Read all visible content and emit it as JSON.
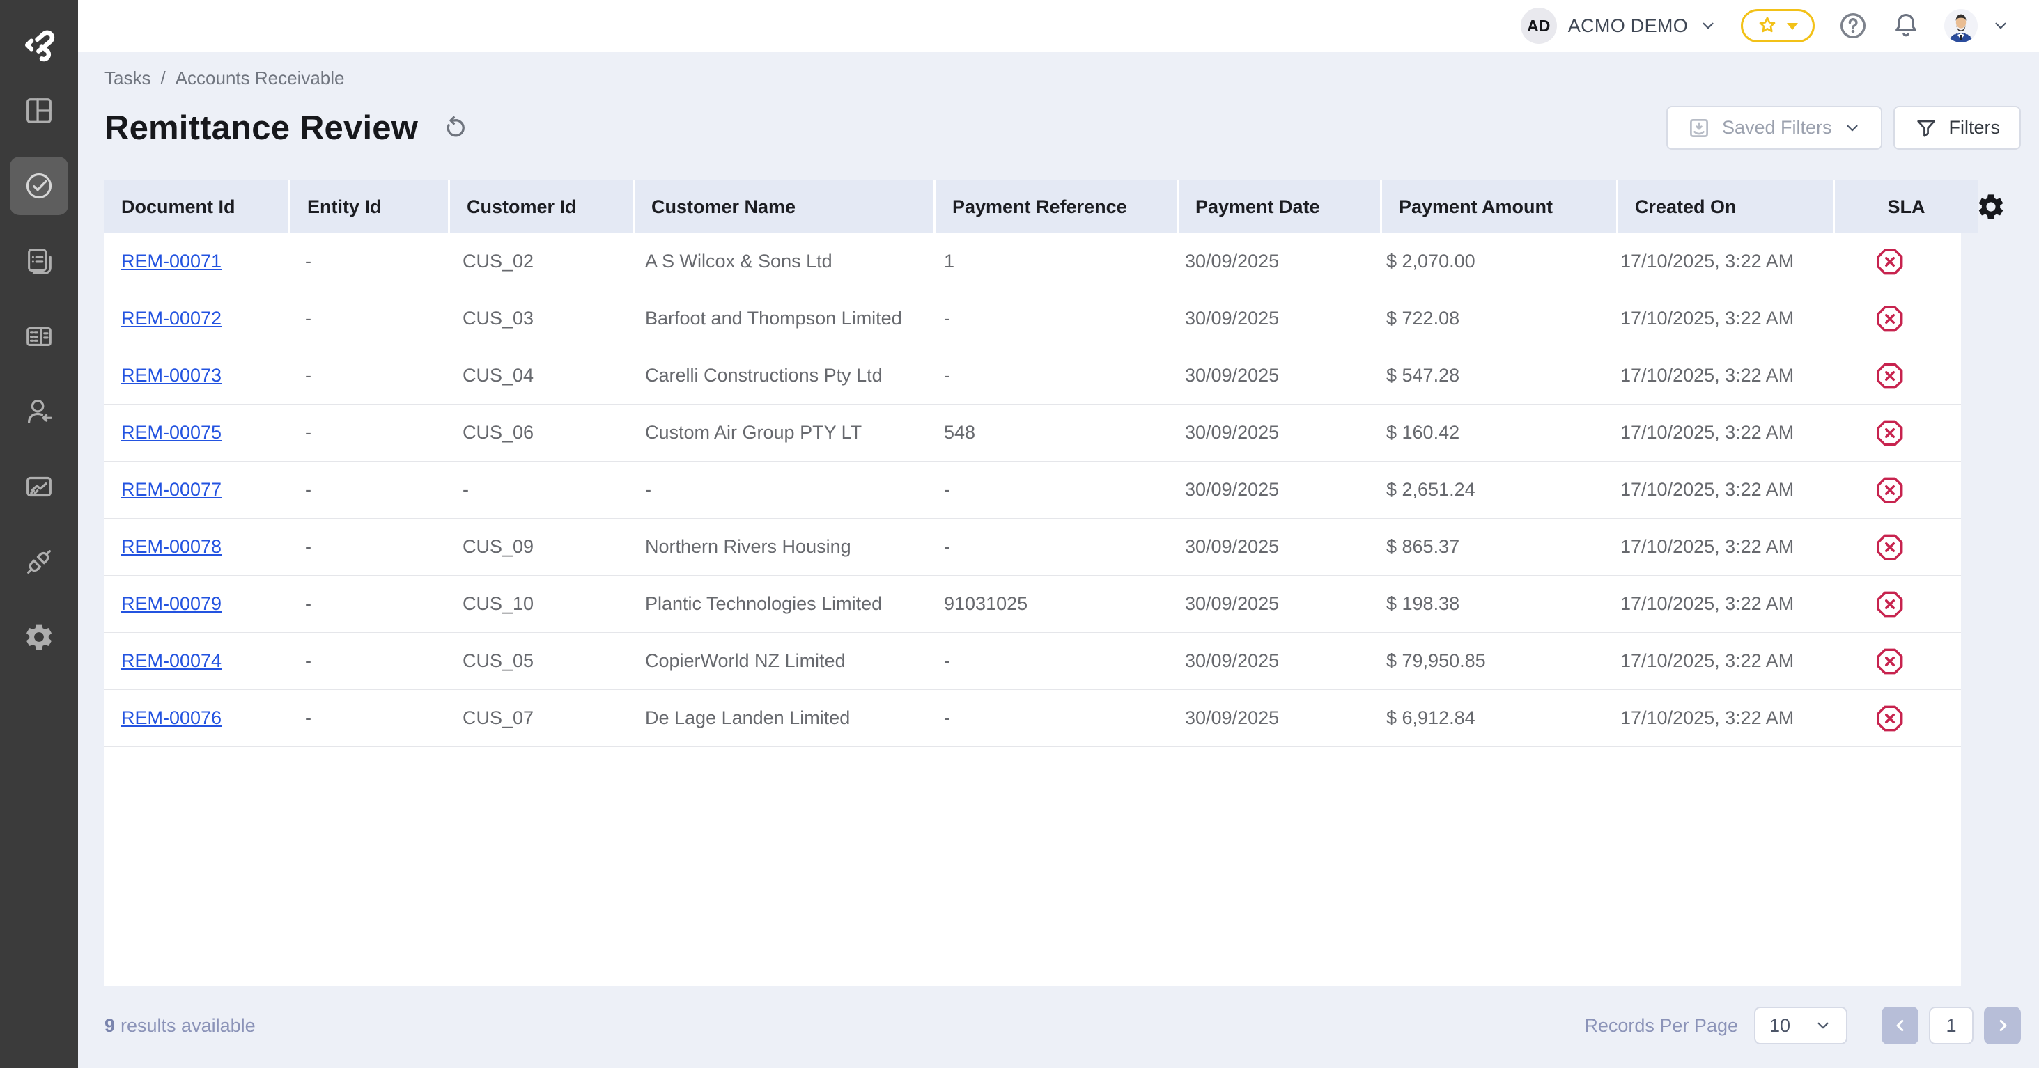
{
  "topbar": {
    "org_badge": "AD",
    "org_name": "ACMO DEMO"
  },
  "breadcrumb": {
    "items": [
      "Tasks",
      "Accounts Receivable"
    ],
    "separator": "/"
  },
  "page": {
    "title": "Remittance Review"
  },
  "toolbar": {
    "saved_filters_label": "Saved Filters",
    "filters_label": "Filters"
  },
  "table": {
    "columns": [
      "Document Id",
      "Entity Id",
      "Customer Id",
      "Customer Name",
      "Payment Reference",
      "Payment Date",
      "Payment Amount",
      "Created On",
      "SLA"
    ],
    "rows": [
      {
        "document_id": "REM-00071",
        "entity_id": "-",
        "customer_id": "CUS_02",
        "customer_name": "A S Wilcox & Sons Ltd",
        "payment_reference": "1",
        "payment_date": "30/09/2025",
        "payment_amount": "$ 2,070.00",
        "created_on": "17/10/2025, 3:22 AM",
        "sla": "breached"
      },
      {
        "document_id": "REM-00072",
        "entity_id": "-",
        "customer_id": "CUS_03",
        "customer_name": "Barfoot and Thompson Limited",
        "payment_reference": "-",
        "payment_date": "30/09/2025",
        "payment_amount": "$ 722.08",
        "created_on": "17/10/2025, 3:22 AM",
        "sla": "breached"
      },
      {
        "document_id": "REM-00073",
        "entity_id": "-",
        "customer_id": "CUS_04",
        "customer_name": "Carelli Constructions Pty Ltd",
        "payment_reference": "-",
        "payment_date": "30/09/2025",
        "payment_amount": "$ 547.28",
        "created_on": "17/10/2025, 3:22 AM",
        "sla": "breached"
      },
      {
        "document_id": "REM-00075",
        "entity_id": "-",
        "customer_id": "CUS_06",
        "customer_name": "Custom Air Group PTY LT",
        "payment_reference": "548",
        "payment_date": "30/09/2025",
        "payment_amount": "$ 160.42",
        "created_on": "17/10/2025, 3:22 AM",
        "sla": "breached"
      },
      {
        "document_id": "REM-00077",
        "entity_id": "-",
        "customer_id": "-",
        "customer_name": "-",
        "payment_reference": "-",
        "payment_date": "30/09/2025",
        "payment_amount": "$ 2,651.24",
        "created_on": "17/10/2025, 3:22 AM",
        "sla": "breached"
      },
      {
        "document_id": "REM-00078",
        "entity_id": "-",
        "customer_id": "CUS_09",
        "customer_name": "Northern Rivers Housing",
        "payment_reference": "-",
        "payment_date": "30/09/2025",
        "payment_amount": "$ 865.37",
        "created_on": "17/10/2025, 3:22 AM",
        "sla": "breached"
      },
      {
        "document_id": "REM-00079",
        "entity_id": "-",
        "customer_id": "CUS_10",
        "customer_name": "Plantic Technologies Limited",
        "payment_reference": "91031025",
        "payment_date": "30/09/2025",
        "payment_amount": "$ 198.38",
        "created_on": "17/10/2025, 3:22 AM",
        "sla": "breached"
      },
      {
        "document_id": "REM-00074",
        "entity_id": "-",
        "customer_id": "CUS_05",
        "customer_name": "CopierWorld NZ Limited",
        "payment_reference": "-",
        "payment_date": "30/09/2025",
        "payment_amount": "$ 79,950.85",
        "created_on": "17/10/2025, 3:22 AM",
        "sla": "breached"
      },
      {
        "document_id": "REM-00076",
        "entity_id": "-",
        "customer_id": "CUS_07",
        "customer_name": "De Lage Landen Limited",
        "payment_reference": "-",
        "payment_date": "30/09/2025",
        "payment_amount": "$ 6,912.84",
        "created_on": "17/10/2025, 3:22 AM",
        "sla": "breached"
      }
    ]
  },
  "footer": {
    "results_count": "9",
    "results_text": "results available",
    "records_per_page_label": "Records Per Page",
    "records_per_page_value": "10",
    "current_page": "1"
  },
  "colors": {
    "link_blue": "#2353e0",
    "sla_red": "#c7234e",
    "favorite_yellow": "#f2c118",
    "header_bg": "#e4e9f4",
    "page_bg": "#edf0f7",
    "sidebar_bg": "#3b3b3b"
  }
}
